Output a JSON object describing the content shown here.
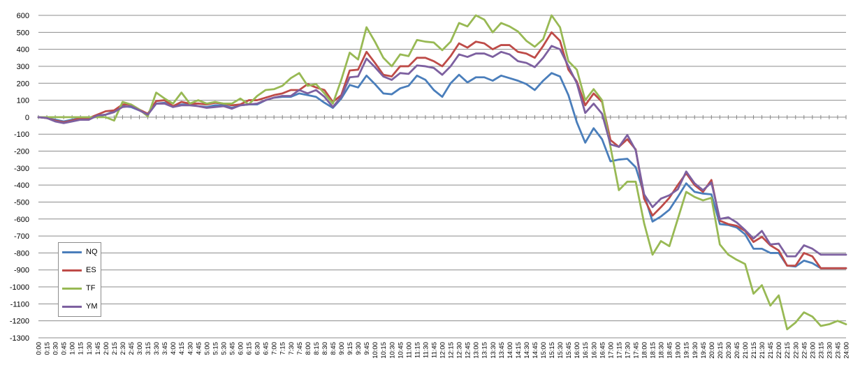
{
  "chart_data": {
    "type": "line",
    "title": "",
    "xlabel": "",
    "ylabel": "",
    "ylim": [
      -1300,
      600
    ],
    "yticks": [
      600,
      500,
      400,
      300,
      200,
      100,
      0,
      -100,
      -200,
      -300,
      -400,
      -500,
      -600,
      -700,
      -800,
      -900,
      -1000,
      -1100,
      -1200,
      -1300
    ],
    "grid": true,
    "legend": "bottom-left",
    "x": [
      "0:00",
      "0:15",
      "0:30",
      "0:45",
      "1:00",
      "1:15",
      "1:30",
      "1:45",
      "2:00",
      "2:15",
      "2:30",
      "2:45",
      "3:00",
      "3:15",
      "3:30",
      "3:45",
      "4:00",
      "4:15",
      "4:30",
      "4:45",
      "5:00",
      "5:15",
      "5:30",
      "5:45",
      "6:00",
      "6:15",
      "6:30",
      "6:45",
      "7:00",
      "7:15",
      "7:30",
      "7:45",
      "8:00",
      "8:15",
      "8:30",
      "8:45",
      "9:00",
      "9:15",
      "9:30",
      "9:45",
      "10:00",
      "10:15",
      "10:30",
      "10:45",
      "11:00",
      "11:15",
      "11:30",
      "11:45",
      "12:00",
      "12:15",
      "12:30",
      "12:45",
      "13:00",
      "13:15",
      "13:30",
      "13:45",
      "14:00",
      "14:15",
      "14:30",
      "14:45",
      "15:00",
      "15:15",
      "15:30",
      "15:45",
      "16:00",
      "16:15",
      "16:30",
      "16:45",
      "17:00",
      "17:15",
      "17:30",
      "17:45",
      "18:00",
      "18:15",
      "18:30",
      "18:45",
      "19:00",
      "19:15",
      "19:30",
      "19:45",
      "20:00",
      "20:15",
      "20:30",
      "20:45",
      "21:00",
      "21:15",
      "21:30",
      "21:45",
      "22:00",
      "22:15",
      "22:30",
      "22:45",
      "23:00",
      "23:15",
      "23:30",
      "23:45",
      "24:00"
    ],
    "series": [
      {
        "name": "NQ",
        "color": "#4a7ebb",
        "values": [
          0,
          -5,
          -15,
          -25,
          -15,
          -5,
          -10,
          5,
          15,
          35,
          65,
          60,
          40,
          15,
          80,
          85,
          60,
          75,
          75,
          65,
          60,
          70,
          70,
          55,
          70,
          75,
          75,
          100,
          115,
          120,
          120,
          140,
          130,
          120,
          85,
          55,
          110,
          190,
          175,
          245,
          195,
          140,
          135,
          170,
          185,
          245,
          220,
          160,
          120,
          200,
          250,
          205,
          235,
          235,
          215,
          245,
          230,
          215,
          195,
          160,
          215,
          260,
          240,
          130,
          -30,
          -150,
          -65,
          -130,
          -260,
          -250,
          -245,
          -295,
          -455,
          -615,
          -585,
          -545,
          -470,
          -390,
          -440,
          -450,
          -455,
          -630,
          -635,
          -650,
          -690,
          -775,
          -775,
          -800,
          -800,
          -875,
          -880,
          -845,
          -860,
          -890,
          -890,
          -890,
          -890
        ]
      },
      {
        "name": "ES",
        "color": "#be4b48",
        "values": [
          0,
          -5,
          -20,
          -30,
          -20,
          -5,
          -5,
          15,
          35,
          40,
          75,
          75,
          45,
          20,
          95,
          100,
          65,
          90,
          80,
          80,
          75,
          85,
          80,
          70,
          75,
          100,
          100,
          115,
          130,
          140,
          160,
          160,
          195,
          175,
          160,
          90,
          130,
          275,
          280,
          385,
          320,
          250,
          240,
          300,
          300,
          350,
          350,
          330,
          300,
          360,
          435,
          410,
          445,
          435,
          400,
          425,
          425,
          385,
          375,
          350,
          420,
          500,
          450,
          280,
          210,
          70,
          140,
          90,
          -135,
          -175,
          -130,
          -190,
          -480,
          -580,
          -530,
          -475,
          -400,
          -330,
          -400,
          -440,
          -370,
          -610,
          -630,
          -640,
          -670,
          -735,
          -705,
          -755,
          -785,
          -875,
          -875,
          -800,
          -820,
          -890,
          -890,
          -890,
          -890
        ]
      },
      {
        "name": "TF",
        "color": "#98b954",
        "values": [
          0,
          0,
          0,
          0,
          0,
          0,
          0,
          0,
          0,
          -20,
          90,
          75,
          45,
          5,
          145,
          110,
          80,
          145,
          80,
          100,
          80,
          90,
          80,
          80,
          110,
          75,
          125,
          160,
          165,
          185,
          230,
          260,
          185,
          195,
          140,
          80,
          220,
          380,
          340,
          530,
          445,
          350,
          300,
          370,
          360,
          455,
          445,
          440,
          395,
          445,
          555,
          535,
          600,
          575,
          500,
          555,
          535,
          505,
          450,
          415,
          460,
          600,
          530,
          330,
          280,
          100,
          165,
          100,
          -175,
          -430,
          -380,
          -380,
          -625,
          -810,
          -730,
          -760,
          -600,
          -440,
          -470,
          -490,
          -475,
          -750,
          -810,
          -840,
          -865,
          -1040,
          -990,
          -1110,
          -1050,
          -1250,
          -1210,
          -1150,
          -1175,
          -1230,
          -1220,
          -1200,
          -1220
        ]
      },
      {
        "name": "YM",
        "color": "#7d60a0",
        "values": [
          0,
          -5,
          -25,
          -35,
          -25,
          -15,
          -15,
          10,
          15,
          30,
          60,
          65,
          40,
          15,
          80,
          80,
          60,
          70,
          70,
          65,
          55,
          60,
          65,
          50,
          70,
          75,
          80,
          100,
          115,
          125,
          125,
          160,
          140,
          160,
          120,
          60,
          120,
          235,
          240,
          345,
          295,
          240,
          220,
          260,
          255,
          305,
          300,
          290,
          250,
          300,
          370,
          355,
          375,
          375,
          355,
          385,
          370,
          330,
          320,
          295,
          350,
          420,
          400,
          300,
          200,
          25,
          80,
          20,
          -160,
          -175,
          -105,
          -195,
          -455,
          -530,
          -480,
          -460,
          -425,
          -320,
          -390,
          -430,
          -385,
          -600,
          -590,
          -620,
          -665,
          -715,
          -670,
          -750,
          -745,
          -820,
          -820,
          -755,
          -775,
          -810,
          -810,
          -810,
          -810
        ]
      }
    ]
  }
}
